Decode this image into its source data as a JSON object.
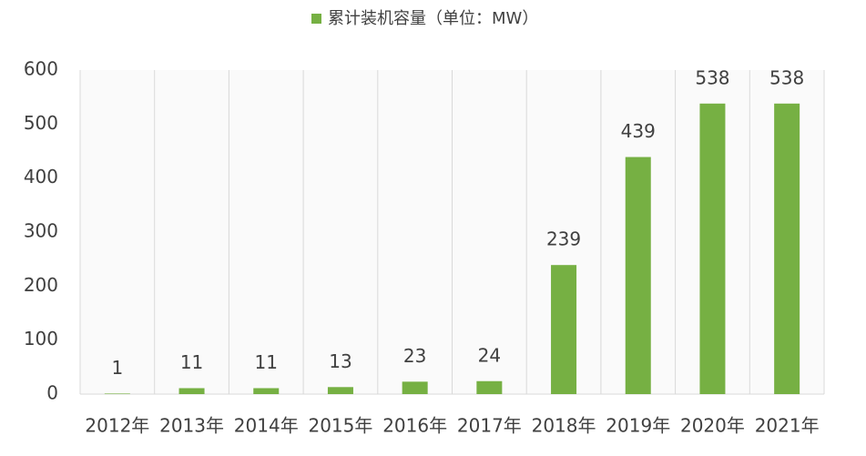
{
  "chart_data": {
    "type": "bar",
    "legend": "累计装机容量（单位：MW）",
    "legend_position": "top",
    "categories": [
      "2012年",
      "2013年",
      "2014年",
      "2015年",
      "2016年",
      "2017年",
      "2018年",
      "2019年",
      "2020年",
      "2021年"
    ],
    "values": [
      1,
      11,
      11,
      13,
      23,
      24,
      239,
      439,
      538,
      538
    ],
    "color": "#76b043",
    "ylim": [
      0,
      600
    ],
    "yticks": [
      0,
      100,
      200,
      300,
      400,
      500,
      600
    ],
    "grid": true
  }
}
